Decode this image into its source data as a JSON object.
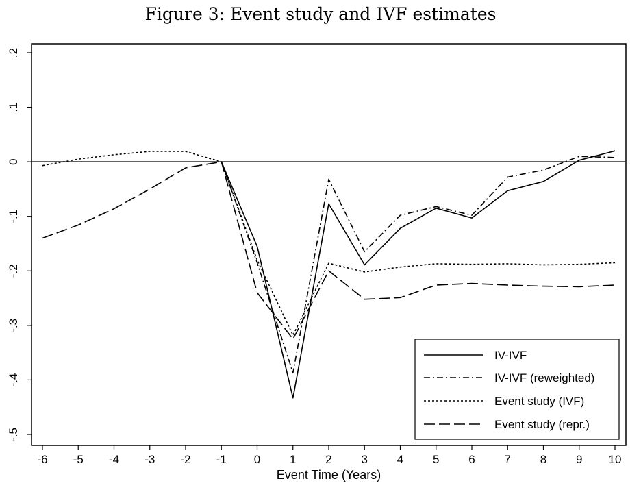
{
  "chart_data": {
    "type": "line",
    "title": "Figure 3: Event study and IVF estimates",
    "xlabel": "Event Time (Years)",
    "ylabel": "",
    "xlim": [
      -6,
      10
    ],
    "ylim": [
      -0.5,
      0.2
    ],
    "x_ticks": [
      -6,
      -5,
      -4,
      -3,
      -2,
      -1,
      0,
      1,
      2,
      3,
      4,
      5,
      6,
      7,
      8,
      9,
      10
    ],
    "x_tick_labels": [
      "-6",
      "-5",
      "-4",
      "-3",
      "-2",
      "-1",
      "0",
      "1",
      "2",
      "3",
      "4",
      "5",
      "6",
      "7",
      "8",
      "9",
      "10"
    ],
    "y_ticks": [
      0.2,
      0.1,
      0,
      -0.1,
      -0.2,
      -0.3,
      -0.4,
      -0.5
    ],
    "y_tick_labels": [
      ".2",
      ".1",
      "0",
      "-.1",
      "-.2",
      "-.3",
      "-.4",
      "-.5"
    ],
    "reference_line_y": 0,
    "legend_position": "bottom-right",
    "series": [
      {
        "name": "IV-IVF",
        "style": "solid",
        "x": [
          -1,
          0,
          1,
          2,
          3,
          4,
          5,
          6,
          7,
          8,
          9,
          10
        ],
        "values": [
          0,
          -0.155,
          -0.433,
          -0.077,
          -0.189,
          -0.122,
          -0.085,
          -0.103,
          -0.053,
          -0.036,
          0.003,
          0.02
        ]
      },
      {
        "name": "IV-IVF (reweighted)",
        "style": "dashdot",
        "x": [
          -1,
          0,
          1,
          2,
          3,
          4,
          5,
          6,
          7,
          8,
          9,
          10
        ],
        "values": [
          0,
          -0.185,
          -0.387,
          -0.032,
          -0.165,
          -0.098,
          -0.082,
          -0.098,
          -0.028,
          -0.015,
          0.01,
          0.008
        ]
      },
      {
        "name": "Event study (IVF)",
        "style": "dotted",
        "x": [
          -6,
          -5,
          -4,
          -3,
          -2,
          -1,
          0,
          1,
          2,
          3,
          4,
          5,
          6,
          7,
          8,
          9,
          10
        ],
        "values": [
          -0.007,
          0.005,
          0.013,
          0.019,
          0.019,
          0,
          -0.18,
          -0.318,
          -0.186,
          -0.202,
          -0.193,
          -0.187,
          -0.188,
          -0.187,
          -0.189,
          -0.188,
          -0.185
        ]
      },
      {
        "name": "Event study (repr.)",
        "style": "longdash",
        "x": [
          -6,
          -5,
          -4,
          -3,
          -2,
          -1,
          0,
          1,
          2,
          3,
          4,
          5,
          6,
          7,
          8,
          9,
          10
        ],
        "values": [
          -0.14,
          -0.116,
          -0.086,
          -0.05,
          -0.011,
          0,
          -0.24,
          -0.325,
          -0.2,
          -0.252,
          -0.249,
          -0.226,
          -0.223,
          -0.226,
          -0.228,
          -0.229,
          -0.226
        ]
      }
    ]
  }
}
